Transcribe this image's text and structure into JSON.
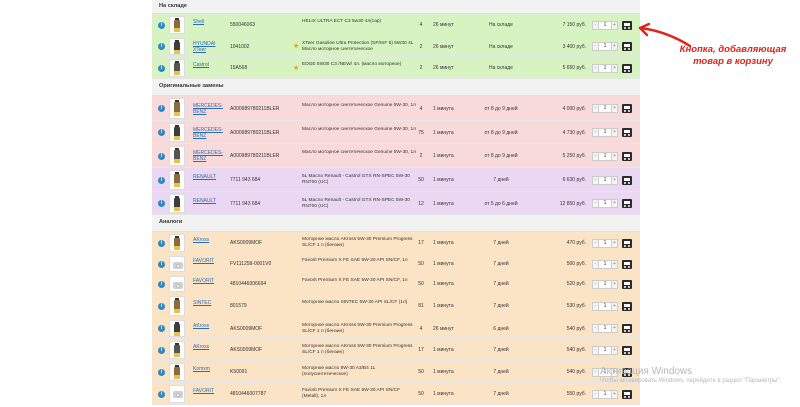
{
  "sections": {
    "in_stock": "На складе",
    "original": "Оригинальные замены",
    "analogs": "Аналоги"
  },
  "stepper": {
    "minus": "-",
    "plus": "+",
    "default_qty": "1"
  },
  "info_symbol": "i",
  "star_symbol": "★",
  "rows_in_stock": [
    {
      "brand": "Shell",
      "article": "550046063",
      "desc": "HELIX ULTRA ECT C3 5w30 4л(cap)",
      "qty": "4",
      "time": "26 минут",
      "avail": "На складе",
      "price": "7 150 руб."
    },
    {
      "brand": "HYUNDAI XTeer",
      "article": "1041002",
      "desc": "XTeer Gasoline Ultra Protection (SP/ISF 6) 5W30 4L Масло моторное синтетическое",
      "qty": "2",
      "time": "26 минут",
      "avail": "На складе",
      "price": "3 400 руб."
    },
    {
      "brand": "Castrol",
      "article": "15A568",
      "desc": "EDGE 5W30 C3 /NEW/ 4л. (масло моторное)",
      "qty": "2",
      "time": "26 минут",
      "avail": "На складе",
      "price": "5 650 руб."
    }
  ],
  "rows_original": [
    {
      "brand": "MERCEDES-BENZ",
      "article": "A000989780211BLER",
      "desc": "Масло моторное синтетическое Genuine 5W-30, 1л",
      "qty": "4",
      "time": "1 минута",
      "avail": "от 8 до 9 дней",
      "price": "4 000 руб."
    },
    {
      "brand": "MERCEDES-BENZ",
      "article": "A000989780211BLER",
      "desc": "Масло моторное синтетическое Genuine 5W-30, 1л",
      "qty": "75",
      "time": "1 минута",
      "avail": "от 8 до 9 дней",
      "price": "4 730 руб."
    },
    {
      "brand": "MERCEDES-BENZ",
      "article": "A000989780211BLER",
      "desc": "Масло моторное синтетическое Genuine 5W-30, 1л",
      "qty": "2",
      "time": "1 минута",
      "avail": "от 8 до 9 дней",
      "price": "5 250 руб."
    },
    {
      "brand": "RENAULT",
      "article": "7711 943 684",
      "desc": "5L Масло Renault - Castrol GTX RN-SPEC 5W-30 RN700 (UC)",
      "qty": "50",
      "time": "1 минута",
      "avail": "7 дней",
      "price": "6 630 руб."
    },
    {
      "brand": "RENAULT",
      "article": "7711 943 684",
      "desc": "5L Масло Renault - Castrol GTX RN-SPEC 5W-30 RN700 (UC)",
      "qty": "12",
      "time": "1 минута",
      "avail": "от 5 до 6 дней",
      "price": "12 850 руб."
    }
  ],
  "rows_analogs": [
    {
      "brand": "AKross",
      "article": "AKS0009MOF",
      "desc": "Моторное масло AKross 5W-30 Premium Progress SL/CF 1 л (бензин)",
      "qty": "17",
      "time": "1 минута",
      "avail": "7 дней",
      "price": "470 руб."
    },
    {
      "brand": "FAVORIT",
      "article": "FV111258-0001V0",
      "desc": "Favorit Premium X FE SAE 5W-30 API SN/CF, 1л",
      "qty": "50",
      "time": "1 минута",
      "avail": "7 дней",
      "price": "500 руб."
    },
    {
      "brand": "FAVORIT",
      "article": "4810446006694",
      "desc": "Favorit Premium X FE SAE 5W-30 API SN/CF, 1л",
      "qty": "50",
      "time": "1 минута",
      "avail": "7 дней",
      "price": "520 руб."
    },
    {
      "brand": "SINTEC",
      "article": "801579",
      "desc": "Моторное масло SINTEC 5W-30 API SL/CF (1л)",
      "qty": "81",
      "time": "1 минута",
      "avail": "7 дней",
      "price": "530 руб."
    },
    {
      "brand": "AKross",
      "article": "AKS0009MOF",
      "desc": "Моторное масло AKross 5W-30 Premium Progress SL/CF 1 л (бензин)",
      "qty": "4",
      "time": "26 минут",
      "avail": "6 дней",
      "price": "540 руб."
    },
    {
      "brand": "AKross",
      "article": "AKS0009MOF",
      "desc": "Моторное масло AKross 5W-30 Premium Progress SL/CF 1 л (бензин)",
      "qty": "17",
      "time": "1 минута",
      "avail": "7 дней",
      "price": "540 руб."
    },
    {
      "brand": "Komsm",
      "article": "K50091",
      "desc": "Моторное масло 5W-30 A3/B4 1L (полусинтетическое)",
      "qty": "50",
      "time": "1 минута",
      "avail": "7 дней",
      "price": "540 руб."
    },
    {
      "brand": "FAVORIT",
      "article": "4810446007787",
      "desc": "Favorit Premium X FE SAE 5W-30 API SN/CF (Metall), 1л",
      "qty": "50",
      "time": "1 минута",
      "avail": "7 дней",
      "price": "550 руб."
    }
  ],
  "annotation": "Кнопка, добавляющая товар в корзину",
  "annotation_color": "#e2231a",
  "watermark": {
    "line1": "Активация Windows",
    "line2": "Чтобы активировать Windows, перейдите в раздел \"Параметры\"."
  }
}
